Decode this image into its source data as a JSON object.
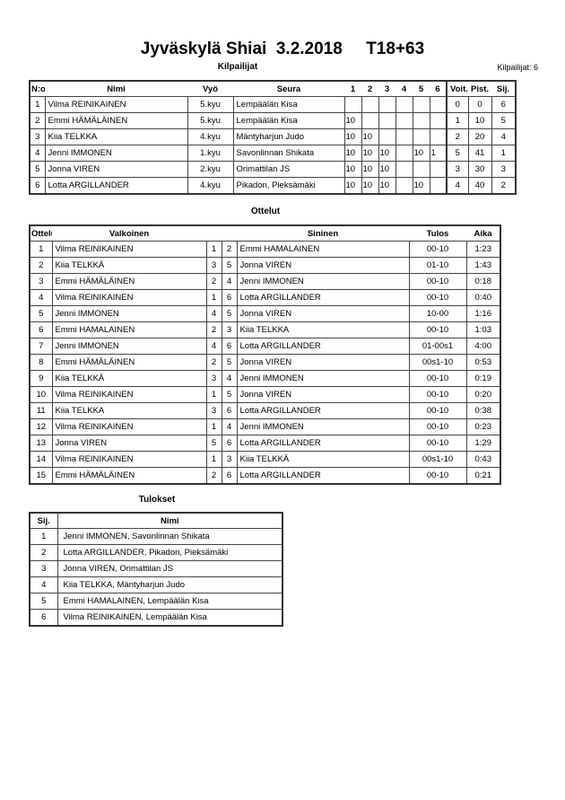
{
  "header": {
    "title": "Jyväskylä Shiai  3.2.2018     T18+63",
    "section_competitors": "Kilpailijat",
    "competitor_count": "Kilpailijat: 6"
  },
  "competitors": {
    "columns": [
      "N:o",
      "Nimi",
      "Vyö",
      "Seura",
      "1",
      "2",
      "3",
      "4",
      "5",
      "6",
      "Voit.",
      "Pist.",
      "Sij."
    ],
    "rows": [
      {
        "no": "1",
        "name": "Vilma REINIKAINEN",
        "belt": "5.kyu",
        "club": "Lempäälän Kisa",
        "s": [
          "",
          "",
          "",
          "",
          "",
          ""
        ],
        "wins": "0",
        "points": "0",
        "place": "6"
      },
      {
        "no": "2",
        "name": "Emmi HÄMÄLÄINEN",
        "belt": "5.kyu",
        "club": "Lempäälän Kisa",
        "s": [
          "10",
          "",
          "",
          "",
          "",
          ""
        ],
        "wins": "1",
        "points": "10",
        "place": "5"
      },
      {
        "no": "3",
        "name": "Kiia TELKKA",
        "belt": "4.kyu",
        "club": "Mäntyharjun Judo",
        "s": [
          "10",
          "10",
          "",
          "",
          "",
          ""
        ],
        "wins": "2",
        "points": "20",
        "place": "4"
      },
      {
        "no": "4",
        "name": "Jenni IMMONEN",
        "belt": "1.kyu",
        "club": "Savonlinnan Shikata",
        "s": [
          "10",
          "10",
          "10",
          "",
          "10",
          "1"
        ],
        "wins": "5",
        "points": "41",
        "place": "1"
      },
      {
        "no": "5",
        "name": "Jonna VIREN",
        "belt": "2.kyu",
        "club": "Orimattilan JS",
        "s": [
          "10",
          "10",
          "10",
          "",
          "",
          ""
        ],
        "wins": "3",
        "points": "30",
        "place": "3"
      },
      {
        "no": "6",
        "name": "Lotta ARGILLANDER",
        "belt": "4.kyu",
        "club": "Pikadon, Pieksämäki",
        "s": [
          "10",
          "10",
          "10",
          "",
          "10",
          ""
        ],
        "wins": "4",
        "points": "40",
        "place": "2"
      }
    ]
  },
  "matches": {
    "title": "Ottelut",
    "columns": [
      "Ottelu",
      "Valkoinen",
      "Sininen",
      "Tulos",
      "Aika"
    ],
    "rows": [
      [
        "1",
        "Vilma REINIKAINEN",
        "1",
        "2",
        "Emmi HAMALAINEN",
        "00-10",
        "1:23"
      ],
      [
        "2",
        "Kiia TELKKÄ",
        "3",
        "5",
        "Jonna VIREN",
        "01-10",
        "1:43"
      ],
      [
        "3",
        "Emmi HÄMÄLÄINEN",
        "2",
        "4",
        "Jenni IMMONEN",
        "00-10",
        "0:18"
      ],
      [
        "4",
        "Vilma REINIKAINEN",
        "1",
        "6",
        "Lotta ARGILLANDER",
        "00-10",
        "0:40"
      ],
      [
        "5",
        "Jenni IMMONEN",
        "4",
        "5",
        "Jonna VIREN",
        "10-00",
        "1:16"
      ],
      [
        "6",
        "Emmi HAMALAINEN",
        "2",
        "3",
        "Kiia TELKKA",
        "00-10",
        "1:03"
      ],
      [
        "7",
        "Jenni IMMONEN",
        "4",
        "6",
        "Lotta ARGILLANDER",
        "01-00s1",
        "4:00"
      ],
      [
        "8",
        "Emmi HÄMÄLÄINEN",
        "2",
        "5",
        "Jonna VIREN",
        "00s1-10",
        "0:53"
      ],
      [
        "9",
        "Kiia TELKKÄ",
        "3",
        "4",
        "Jenni IMMONEN",
        "00-10",
        "0:19"
      ],
      [
        "10",
        "Vilma REINIKAINEN",
        "1",
        "5",
        "Jonna VIREN",
        "00-10",
        "0:20"
      ],
      [
        "11",
        "Kiia TELKKA",
        "3",
        "6",
        "Lotta ARGILLANDER",
        "00-10",
        "0:38"
      ],
      [
        "12",
        "Vilma REINIKAINEN",
        "1",
        "4",
        "Jenni IMMONEN",
        "00-10",
        "0:23"
      ],
      [
        "13",
        "Jonna VIREN",
        "5",
        "6",
        "Lotta ARGILLANDER",
        "00-10",
        "1:29"
      ],
      [
        "14",
        "Vilma REINIKAINEN",
        "1",
        "3",
        "Kiia TELKKÄ",
        "00s1-10",
        "0:43"
      ],
      [
        "15",
        "Emmi HÄMÄLÄINEN",
        "2",
        "6",
        "Lotta ARGILLANDER",
        "00-10",
        "0:21"
      ]
    ]
  },
  "results": {
    "title": "Tulokset",
    "columns": [
      "Sij.",
      "Nimi"
    ],
    "rows": [
      [
        "1",
        "Jenni IMMONEN, Savonlinnan Shikata"
      ],
      [
        "2",
        "Lotta ARGILLANDER, Pikadon, Pieksämäki"
      ],
      [
        "3",
        "Jonna VIREN, Orimattilan JS"
      ],
      [
        "4",
        "Kiia TELKKA, Mäntyharjun Judo"
      ],
      [
        "5",
        "Emmi HAMALAINEN, Lempäälän Kisa"
      ],
      [
        "6",
        "Vilma REINIKAINEN, Lempäälän Kisa"
      ]
    ]
  }
}
